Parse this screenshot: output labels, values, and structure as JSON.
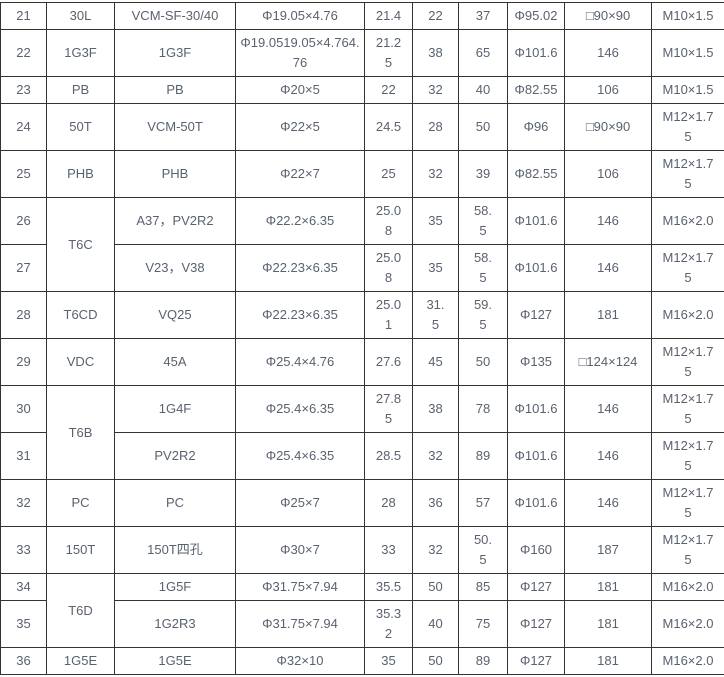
{
  "colors": {
    "border": "#333333",
    "text": "#59626e",
    "background": "#ffffff"
  },
  "table": {
    "columns_count": 10,
    "rows": [
      [
        "21",
        "30L",
        "VCM-SF-30/40",
        "Φ19.05×4.76",
        "21.4",
        "22",
        "37",
        "Φ95.02",
        "□90×90",
        "M10×1.5"
      ],
      [
        "22",
        "1G3F",
        "1G3F",
        "Φ19.0519.05×4.764.\n76",
        "21.2\n5",
        "38",
        "65",
        "Φ101.6",
        "146",
        "M10×1.5"
      ],
      [
        "23",
        "PB",
        "PB",
        "Φ20×5",
        "22",
        "32",
        "40",
        "Φ82.55",
        "106",
        "M10×1.5"
      ],
      [
        "24",
        "50T",
        "VCM-50T",
        "Φ22×5",
        "24.5",
        "28",
        "50",
        "Φ96",
        "□90×90",
        "M12×1.7\n5"
      ],
      [
        "25",
        "PHB",
        "PHB",
        "Φ22×7",
        "25",
        "32",
        "39",
        "Φ82.55",
        "106",
        "M12×1.7\n5"
      ],
      [
        "26",
        {
          "text": "T6C",
          "rowspan": 2
        },
        "A37，PV2R2",
        "Φ22.2×6.35",
        "25.0\n8",
        "35",
        "58.\n5",
        "Φ101.6",
        "146",
        "M16×2.0"
      ],
      [
        "27",
        null,
        "V23，V38",
        "Φ22.23×6.35",
        "25.0\n8",
        "35",
        "58.\n5",
        "Φ101.6",
        "146",
        "M12×1.7\n5"
      ],
      [
        "28",
        "T6CD",
        "VQ25",
        "Φ22.23×6.35",
        "25.0\n1",
        "31.\n5",
        "59.\n5",
        "Φ127",
        "181",
        "M16×2.0"
      ],
      [
        "29",
        "VDC",
        "45A",
        "Φ25.4×4.76",
        "27.6",
        "45",
        "50",
        "Φ135",
        "□124×124",
        "M12×1.7\n5"
      ],
      [
        "30",
        {
          "text": "T6B",
          "rowspan": 2
        },
        "1G4F",
        "Φ25.4×6.35",
        "27.8\n5",
        "38",
        "78",
        "Φ101.6",
        "146",
        "M12×1.7\n5"
      ],
      [
        "31",
        null,
        "PV2R2",
        "Φ25.4×6.35",
        "28.5",
        "32",
        "89",
        "Φ101.6",
        "146",
        "M12×1.7\n5"
      ],
      [
        "32",
        "PC",
        "PC",
        "Φ25×7",
        "28",
        "36",
        "57",
        "Φ101.6",
        "146",
        "M12×1.7\n5"
      ],
      [
        "33",
        "150T",
        "150T四孔",
        "Φ30×7",
        "33",
        "32",
        "50.\n5",
        "Φ160",
        "187",
        "M12×1.7\n5"
      ],
      [
        "34",
        {
          "text": "T6D",
          "rowspan": 2
        },
        "1G5F",
        "Φ31.75×7.94",
        "35.5",
        "50",
        "85",
        "Φ127",
        "181",
        "M16×2.0"
      ],
      [
        "35",
        null,
        "1G2R3",
        "Φ31.75×7.94",
        "35.3\n2",
        "40",
        "75",
        "Φ127",
        "181",
        "M16×2.0"
      ],
      [
        "36",
        "1G5E",
        "1G5E",
        "Φ32×10",
        "35",
        "50",
        "89",
        "Φ127",
        "181",
        "M16×2.0"
      ]
    ]
  }
}
